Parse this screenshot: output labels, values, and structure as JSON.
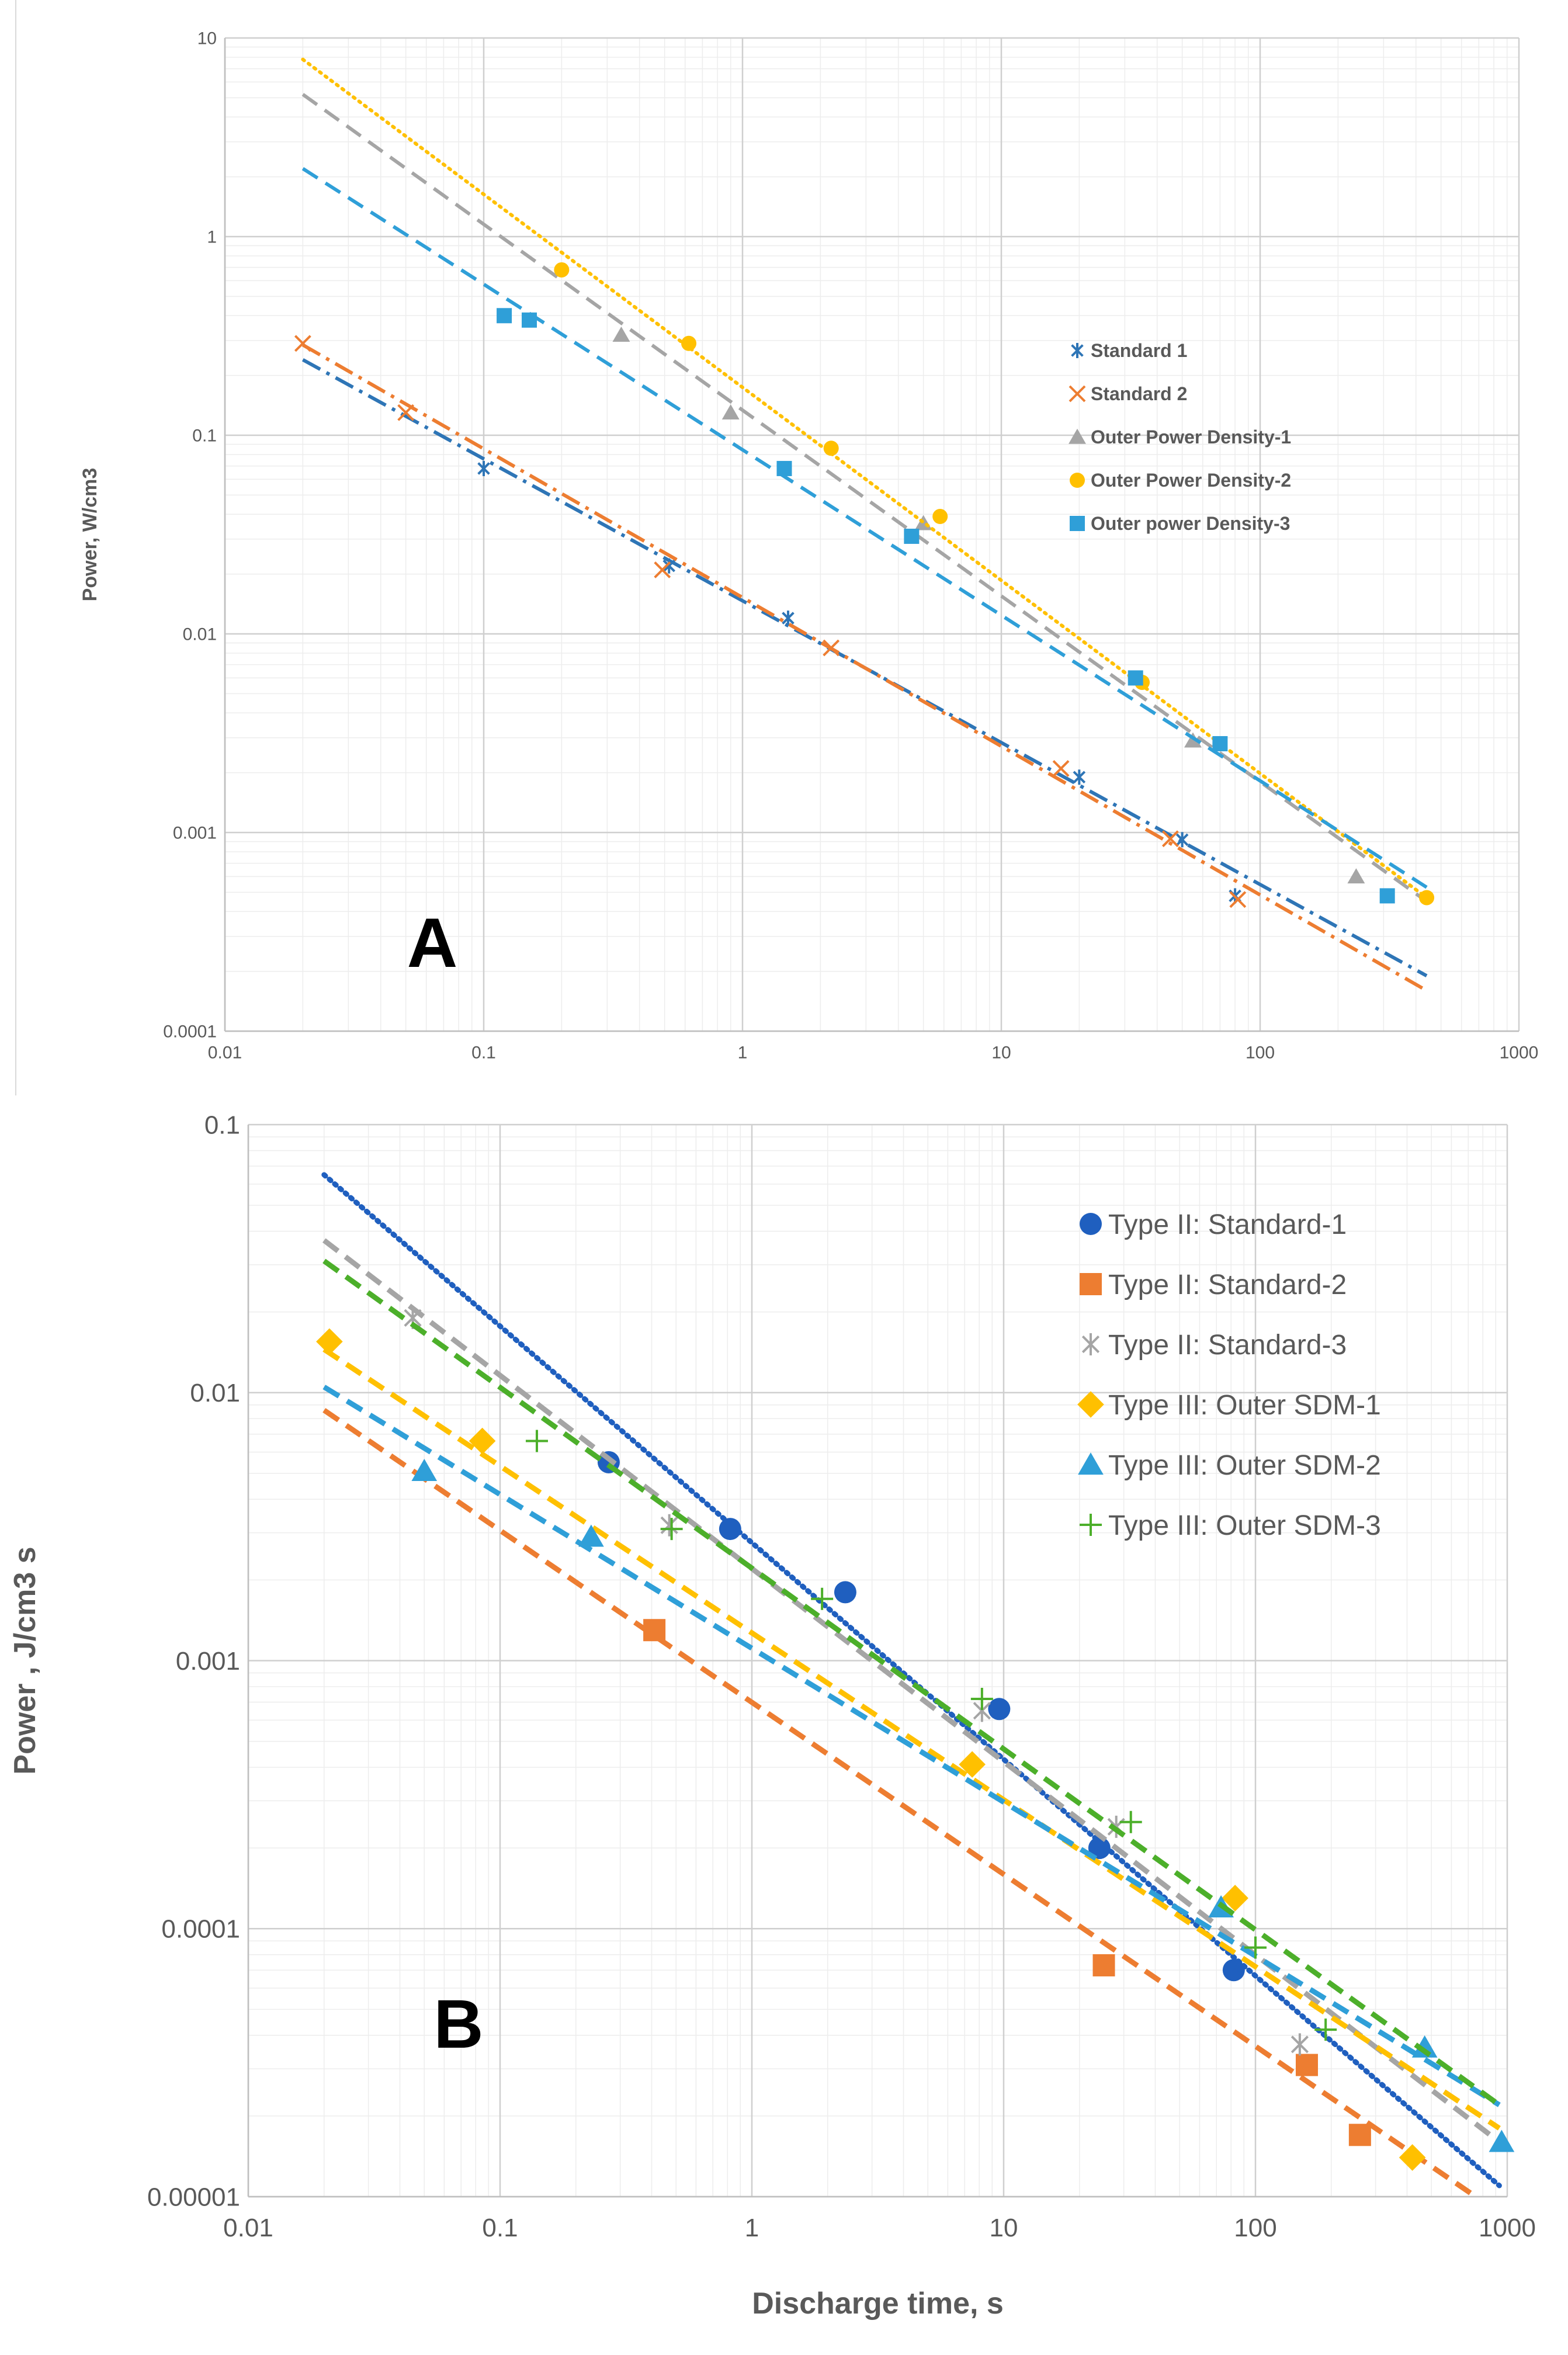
{
  "chart_data": [
    {
      "type": "scatter",
      "panel_label": "A",
      "title": "",
      "xlabel": "",
      "ylabel": "Power, W/cm3",
      "x_scale": "log",
      "y_scale": "log",
      "xlim": [
        0.01,
        1000
      ],
      "ylim": [
        0.0001,
        10
      ],
      "x_ticks": [
        "0.01",
        "0.1",
        "1",
        "10",
        "100",
        "1000"
      ],
      "y_ticks": [
        "0.0001",
        "0.001",
        "0.01",
        "0.1",
        "1",
        "10"
      ],
      "grid": true,
      "legend": "right",
      "series": [
        {
          "name": "Standard 1",
          "color": "#2e75b6",
          "marker": "asterisk",
          "points": [
            [
              0.1,
              0.068
            ],
            [
              0.52,
              0.022
            ],
            [
              1.5,
              0.012
            ],
            [
              20,
              0.0019
            ],
            [
              50,
              0.00092
            ],
            [
              80,
              0.00048
            ]
          ],
          "trend": [
            [
              0.02,
              0.24
            ],
            [
              440,
              0.00019
            ]
          ],
          "trend_style": "dashdot"
        },
        {
          "name": "Standard 2",
          "color": "#ed7d31",
          "marker": "x",
          "points": [
            [
              0.02,
              0.29
            ],
            [
              0.05,
              0.13
            ],
            [
              0.49,
              0.021
            ],
            [
              2.2,
              0.0085
            ],
            [
              17,
              0.0021
            ],
            [
              45,
              0.00093
            ],
            [
              82,
              0.00046
            ]
          ],
          "trend": [
            [
              0.02,
              0.285
            ],
            [
              440,
              0.00016
            ]
          ],
          "trend_style": "dashdot"
        },
        {
          "name": "Outer Power Density-1",
          "color": "#a5a5a5",
          "marker": "triangle",
          "points": [
            [
              0.34,
              0.32
            ],
            [
              0.9,
              0.13
            ],
            [
              5,
              0.036
            ],
            [
              55,
              0.0029
            ],
            [
              235,
              0.0006
            ]
          ],
          "trend": [
            [
              0.02,
              5.2
            ],
            [
              440,
              0.00045
            ]
          ],
          "trend_style": "dashed"
        },
        {
          "name": "Outer Power Density-2",
          "color": "#ffc000",
          "marker": "circle",
          "points": [
            [
              0.2,
              0.68
            ],
            [
              0.62,
              0.29
            ],
            [
              2.2,
              0.086
            ],
            [
              5.8,
              0.039
            ],
            [
              35,
              0.0057
            ],
            [
              440,
              0.00047
            ]
          ],
          "trend": [
            [
              0.02,
              7.8
            ],
            [
              440,
              0.00047
            ]
          ],
          "trend_style": "dotted"
        },
        {
          "name": "Outer power Density-3",
          "color": "#2f9fd8",
          "marker": "square",
          "points": [
            [
              0.12,
              0.4
            ],
            [
              0.15,
              0.38
            ],
            [
              1.45,
              0.068
            ],
            [
              4.5,
              0.031
            ],
            [
              33,
              0.006
            ],
            [
              70,
              0.0028
            ],
            [
              310,
              0.00048
            ]
          ],
          "trend": [
            [
              0.02,
              2.2
            ],
            [
              440,
              0.00053
            ]
          ],
          "trend_style": "dashed"
        }
      ]
    },
    {
      "type": "scatter",
      "panel_label": "B",
      "title": "",
      "xlabel": "Discharge time, s",
      "ylabel": "Power , J/cm3 s",
      "x_scale": "log",
      "y_scale": "log",
      "xlim": [
        0.01,
        1000
      ],
      "ylim": [
        1e-05,
        0.1
      ],
      "x_ticks": [
        "0.01",
        "0.1",
        "1",
        "10",
        "100",
        "1000"
      ],
      "y_ticks": [
        "0.00001",
        "0.0001",
        "0.001",
        "0.01",
        "0.1"
      ],
      "grid": true,
      "legend": "top-right",
      "series": [
        {
          "name": "Type II: Standard-1",
          "color": "#1f5fbf",
          "marker": "circle",
          "points": [
            [
              0.27,
              0.0055
            ],
            [
              0.82,
              0.0031
            ],
            [
              2.35,
              0.0018
            ],
            [
              9.6,
              0.00066
            ],
            [
              24,
              0.0002
            ],
            [
              82,
              7e-05
            ],
            [
              160,
              3.1e-05
            ]
          ],
          "trend": [
            [
              0.02,
              0.065
            ],
            [
              930,
              1.1e-05
            ]
          ],
          "trend_style": "dotted"
        },
        {
          "name": "Type II: Standard-2",
          "color": "#ed7d31",
          "marker": "square",
          "points": [
            [
              0.41,
              0.0013
            ],
            [
              25,
              7.3e-05
            ],
            [
              160,
              3.1e-05
            ],
            [
              260,
              1.7e-05
            ]
          ],
          "trend": [
            [
              0.02,
              0.0086
            ],
            [
              750,
              1e-05
            ]
          ],
          "trend_style": "dashed"
        },
        {
          "name": "Type II: Standard-3",
          "color": "#a5a5a5",
          "marker": "asterisk",
          "points": [
            [
              0.045,
              0.019
            ],
            [
              0.47,
              0.0032
            ],
            [
              8.2,
              0.00065
            ],
            [
              28,
              0.00024
            ],
            [
              150,
              3.7e-05
            ]
          ],
          "trend": [
            [
              0.02,
              0.037
            ],
            [
              930,
              1.6e-05
            ]
          ],
          "trend_style": "dashed"
        },
        {
          "name": "Type III: Outer SDM-1",
          "color": "#ffc000",
          "marker": "diamond",
          "points": [
            [
              0.021,
              0.0155
            ],
            [
              0.085,
              0.0066
            ],
            [
              7.5,
              0.00041
            ],
            [
              83,
              0.00013
            ],
            [
              420,
              1.4e-05
            ]
          ],
          "trend": [
            [
              0.02,
              0.0145
            ],
            [
              930,
              1.8e-05
            ]
          ],
          "trend_style": "dashed"
        },
        {
          "name": "Type III: Outer SDM-2",
          "color": "#2f9fd8",
          "marker": "triangle",
          "points": [
            [
              0.05,
              0.0051
            ],
            [
              0.23,
              0.0029
            ],
            [
              73,
              0.00012
            ],
            [
              470,
              3.6e-05
            ],
            [
              950,
              1.6e-05
            ]
          ],
          "trend": [
            [
              0.02,
              0.0105
            ],
            [
              930,
              2.2e-05
            ]
          ],
          "trend_style": "dashed"
        },
        {
          "name": "Type III: Outer SDM-3",
          "color": "#4caf2a",
          "marker": "plus",
          "points": [
            [
              0.14,
              0.0066
            ],
            [
              0.48,
              0.0031
            ],
            [
              1.9,
              0.0017
            ],
            [
              8.2,
              0.00072
            ],
            [
              32,
              0.00025
            ],
            [
              100,
              8.5e-05
            ],
            [
              190,
              4.2e-05
            ]
          ],
          "trend": [
            [
              0.02,
              0.031
            ],
            [
              930,
              2.2e-05
            ]
          ],
          "trend_style": "dashed"
        }
      ]
    }
  ]
}
